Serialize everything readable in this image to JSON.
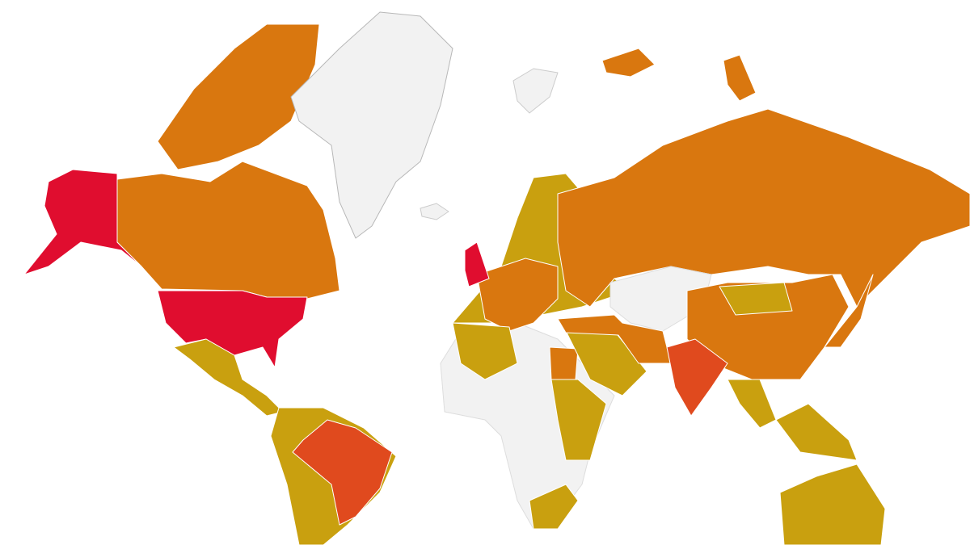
{
  "map": {
    "type": "choropleth-world",
    "legend": "none",
    "colors": {
      "highest": "#e00d2f",
      "high": "#e04a1e",
      "medium": "#d9770f",
      "low": "#c9a00f",
      "no_data": "#f2f2f2"
    },
    "regions": [
      {
        "id": "canada-arctic",
        "tier": "medium"
      },
      {
        "id": "canada",
        "tier": "medium"
      },
      {
        "id": "alaska",
        "tier": "highest"
      },
      {
        "id": "usa",
        "tier": "highest"
      },
      {
        "id": "mexico-central-america",
        "tier": "low"
      },
      {
        "id": "south-america",
        "tier": "low"
      },
      {
        "id": "brazil",
        "tier": "high"
      },
      {
        "id": "greenland",
        "tier": "no_data"
      },
      {
        "id": "iceland",
        "tier": "no_data"
      },
      {
        "id": "europe",
        "tier": "low"
      },
      {
        "id": "western-europe",
        "tier": "medium"
      },
      {
        "id": "uk",
        "tier": "highest"
      },
      {
        "id": "russia",
        "tier": "medium"
      },
      {
        "id": "kazakhstan",
        "tier": "no_data"
      },
      {
        "id": "africa",
        "tier": "no_data"
      },
      {
        "id": "north-africa",
        "tier": "low"
      },
      {
        "id": "egypt",
        "tier": "medium"
      },
      {
        "id": "east-africa",
        "tier": "low"
      },
      {
        "id": "south-africa",
        "tier": "low"
      },
      {
        "id": "middle-east",
        "tier": "low"
      },
      {
        "id": "turkey-iran",
        "tier": "medium"
      },
      {
        "id": "china",
        "tier": "medium"
      },
      {
        "id": "mongolia",
        "tier": "low"
      },
      {
        "id": "india",
        "tier": "high"
      },
      {
        "id": "southeast-asia",
        "tier": "low"
      },
      {
        "id": "japan",
        "tier": "medium"
      },
      {
        "id": "australia",
        "tier": "low"
      },
      {
        "id": "svalbard",
        "tier": "no_data"
      },
      {
        "id": "russian-arctic-islands",
        "tier": "medium"
      }
    ]
  }
}
